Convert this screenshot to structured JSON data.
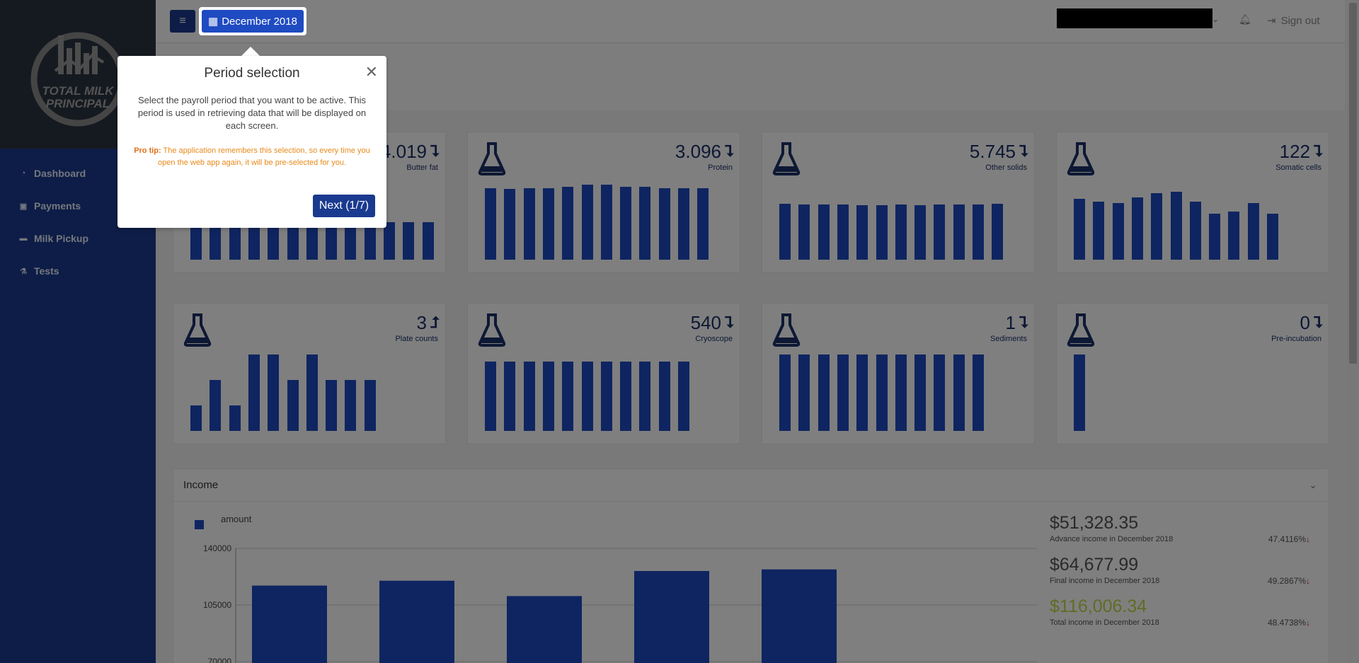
{
  "sidebar": {
    "logo_text": [
      "TOTAL MILK",
      "PRINCIPAL"
    ],
    "items": [
      {
        "label": "Dashboard",
        "icon": "dashboard-icon"
      },
      {
        "label": "Payments",
        "icon": "money-icon"
      },
      {
        "label": "Milk Pickup",
        "icon": "truck-icon"
      },
      {
        "label": "Tests",
        "icon": "flask-icon"
      }
    ]
  },
  "topbar": {
    "period_label": "December 2018",
    "signout_label": "Sign out"
  },
  "cards": [
    {
      "value": "4.019",
      "label": "Butter fat",
      "trend": "down",
      "bars": [
        44,
        44,
        44,
        44,
        44,
        44,
        46,
        44,
        44,
        44,
        44,
        44,
        44
      ]
    },
    {
      "value": "3.096",
      "label": "Protein",
      "trend": "down",
      "bars": [
        84,
        83,
        84,
        84,
        86,
        88,
        88,
        86,
        86,
        84,
        84,
        84
      ]
    },
    {
      "value": "5.745",
      "label": "Other solids",
      "trend": "down",
      "bars": [
        66,
        65,
        65,
        65,
        64,
        64,
        65,
        64,
        65,
        65,
        65,
        66
      ]
    },
    {
      "value": "122",
      "label": "Somatic cells",
      "trend": "down",
      "bars": [
        72,
        68,
        67,
        73,
        78,
        80,
        68,
        54,
        57,
        67,
        54
      ]
    },
    {
      "value": "3",
      "label": "Plate counts",
      "trend": "up",
      "bars": [
        30,
        60,
        30,
        90,
        90,
        60,
        90,
        60,
        60,
        60
      ]
    },
    {
      "value": "540",
      "label": "Cryoscope",
      "trend": "down",
      "bars": [
        82,
        82,
        82,
        82,
        82,
        82,
        82,
        82,
        82,
        82,
        82
      ]
    },
    {
      "value": "1",
      "label": "Sediments",
      "trend": "down",
      "bars": [
        90,
        90,
        90,
        90,
        90,
        90,
        90,
        90,
        90,
        90,
        90
      ]
    },
    {
      "value": "0",
      "label": "Pre-incubation",
      "trend": "down",
      "bars": [
        90
      ]
    }
  ],
  "income": {
    "title": "Income",
    "stats": [
      {
        "amount": "$51,328.35",
        "desc": "Advance income in December 2018",
        "pct": "47.4116%"
      },
      {
        "amount": "$64,677.99",
        "desc": "Final income in December 2018",
        "pct": "49.2867%"
      },
      {
        "amount": "$116,006.34",
        "desc": "Total income in December 2018",
        "pct": "48.4738%",
        "highlight": true
      }
    ]
  },
  "chart_data": {
    "type": "bar",
    "series": [
      {
        "name": "amount",
        "values": [
          117000,
          120000,
          110500,
          126000,
          127000
        ]
      }
    ],
    "categories": [
      "",
      "",
      "",
      "",
      ""
    ],
    "yticks": [
      140000,
      105000,
      70000
    ],
    "ylim": [
      70000,
      140000
    ],
    "legend": "top-left",
    "color": "#1f4bc2"
  },
  "popover": {
    "title": "Period selection",
    "body": "Select the payroll period that you want to be active. This period is used in retrieving data that will be displayed on each screen.",
    "tip_label": "Pro tip:",
    "tip_text": "The application remembers this selection, so every time you open the web app again, it will be pre-selected for you.",
    "next_label": "Next (1/7)"
  }
}
